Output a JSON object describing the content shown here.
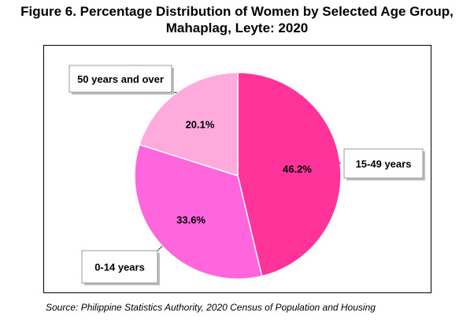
{
  "title_line1": "Figure 6. Percentage Distribution of Women by Selected Age Group,",
  "title_line2": "Mahaplag, Leyte: 2020",
  "source": "Source: Philippine Statistics Authority, 2020 Census of Population and Housing",
  "chart_data": {
    "type": "pie",
    "title": "Figure 6. Percentage Distribution of Women by Selected Age Group, Mahaplag, Leyte: 2020",
    "categories": [
      "15-49 years",
      "0-14 years",
      "50 years and over"
    ],
    "values": [
      46.2,
      33.6,
      20.1
    ],
    "value_labels": [
      "46.2%",
      "33.6%",
      "20.1%"
    ],
    "colors": [
      "#ff3399",
      "#ff66dd",
      "#ffaadd"
    ],
    "legend": "none"
  }
}
